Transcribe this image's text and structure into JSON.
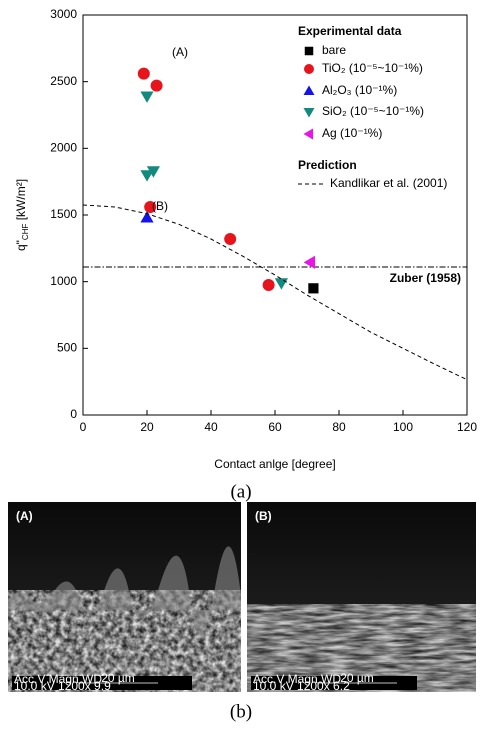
{
  "chart_data": {
    "type": "scatter",
    "x_label": "Contact anlge [degree]",
    "y_label": {
      "main": "q\"",
      "sub": "CHF",
      "unit": " [kW/m²]"
    },
    "xlim": [
      0,
      120
    ],
    "xticks": [
      0,
      20,
      40,
      60,
      80,
      100,
      120
    ],
    "ylim": [
      0,
      3000
    ],
    "yticks": [
      0,
      500,
      1000,
      1500,
      2000,
      2500,
      3000
    ],
    "legend_groups": [
      "Experimental data",
      "Prediction"
    ],
    "series": [
      {
        "name": "bare",
        "marker": "square",
        "color": "#000000",
        "x": [
          72
        ],
        "values": [
          950
        ]
      },
      {
        "name": "TiO₂   (10⁻⁵~10⁻¹%)",
        "marker": "circle",
        "color": "#e8141c",
        "x": [
          19,
          23,
          21,
          46,
          58
        ],
        "values": [
          2560,
          2470,
          1560,
          1320,
          975
        ]
      },
      {
        "name": "Al₂O₃  (10⁻¹%)",
        "marker": "triangle-up",
        "color": "#1414e8",
        "x": [
          20
        ],
        "values": [
          1480
        ]
      },
      {
        "name": "SiO₂   (10⁻⁵~10⁻¹%)",
        "marker": "triangle-down",
        "color": "#138a80",
        "x": [
          20,
          20,
          22,
          62
        ],
        "values": [
          2390,
          1800,
          1830,
          990
        ]
      },
      {
        "name": "Ag     (10⁻¹%)",
        "marker": "triangle-left",
        "color": "#e814e8",
        "x": [
          71
        ],
        "values": [
          1145
        ]
      },
      {
        "name": "Kandlikar et al. (2001)",
        "marker": "line",
        "style": "dashed",
        "color": "#000000",
        "x": [
          0,
          10,
          20,
          30,
          40,
          50,
          60,
          70,
          80,
          90,
          100,
          110,
          120
        ],
        "values": [
          1575,
          1560,
          1510,
          1430,
          1320,
          1190,
          1050,
          900,
          760,
          620,
          500,
          380,
          265
        ]
      }
    ],
    "reference_lines": [
      {
        "name": "Zuber (1958)",
        "value": 1110,
        "style": "dashdot",
        "color": "#000000"
      }
    ],
    "annotations": [
      "(A)",
      "(B)"
    ],
    "panel_label": "(a)"
  },
  "figure_b": {
    "panel_label": "(b)",
    "images": [
      {
        "label": "(A)",
        "info_header": "Acc.V  Magn    WD",
        "scale": "20 µm",
        "info": "10.0 kV 1200x    9.9"
      },
      {
        "label": "(B)",
        "info_header": "Acc.V  Magn    WD",
        "scale": "20 µm",
        "info": "10.0 kV 1200x    6.2"
      }
    ]
  }
}
